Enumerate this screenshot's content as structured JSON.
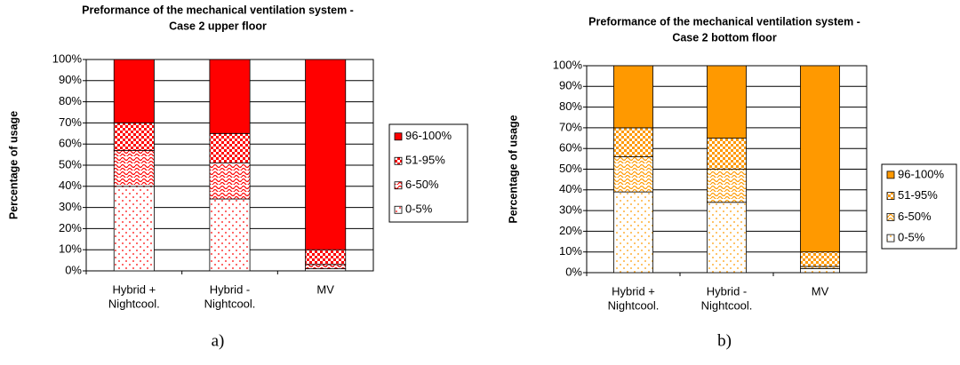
{
  "chart_data": [
    {
      "type": "bar",
      "stacked": true,
      "title": [
        "Preformance of the mechanical ventilation system  -",
        "Case 2 upper floor"
      ],
      "y_label": "Percentage of usage",
      "caption": "a)",
      "categories": [
        [
          "Hybrid +",
          "Nightcool."
        ],
        [
          "Hybrid -",
          "Nightcool."
        ],
        [
          "MV"
        ]
      ],
      "series": [
        {
          "name": "0-5%",
          "color": "#ff0000",
          "pattern": "dots",
          "values": [
            40,
            34,
            1
          ]
        },
        {
          "name": "6-50%",
          "color": "#ff0000",
          "pattern": "waves",
          "values": [
            17,
            17,
            2
          ]
        },
        {
          "name": "51-95%",
          "color": "#ff0000",
          "pattern": "checker",
          "values": [
            13,
            14,
            7
          ]
        },
        {
          "name": "96-100%",
          "color": "#ff0000",
          "pattern": "solid",
          "values": [
            30,
            35,
            90
          ]
        }
      ],
      "ylim": [
        0,
        100
      ],
      "yticks": [
        {
          "value": 0,
          "label": "0%"
        },
        {
          "value": 10,
          "label": "10%"
        },
        {
          "value": 20,
          "label": "20%"
        },
        {
          "value": 30,
          "label": "30%"
        },
        {
          "value": 40,
          "label": "40%"
        },
        {
          "value": 50,
          "label": "50%"
        },
        {
          "value": 60,
          "label": "60%"
        },
        {
          "value": 70,
          "label": "70%"
        },
        {
          "value": 80,
          "label": "80%"
        },
        {
          "value": 90,
          "label": "90%"
        },
        {
          "value": 100,
          "label": "100%"
        }
      ],
      "grid": true,
      "legend": "right"
    },
    {
      "type": "bar",
      "stacked": true,
      "title": [
        "Preformance of the mechanical ventilation system  -",
        "Case 2 bottom floor"
      ],
      "y_label": "Percentage of usage",
      "caption": "b)",
      "categories": [
        [
          "Hybrid +",
          "Nightcool."
        ],
        [
          "Hybrid -",
          "Nightcool."
        ],
        [
          "MV"
        ]
      ],
      "series": [
        {
          "name": "0-5%",
          "color": "#ff9900",
          "pattern": "dots",
          "values": [
            39,
            34,
            2
          ]
        },
        {
          "name": "6-50%",
          "color": "#ff9900",
          "pattern": "waves",
          "values": [
            17,
            16,
            1
          ]
        },
        {
          "name": "51-95%",
          "color": "#ff9900",
          "pattern": "checker",
          "values": [
            14,
            15,
            7
          ]
        },
        {
          "name": "96-100%",
          "color": "#ff9900",
          "pattern": "solid",
          "values": [
            30,
            35,
            90
          ]
        }
      ],
      "ylim": [
        0,
        100
      ],
      "yticks": [
        {
          "value": 0,
          "label": "0%"
        },
        {
          "value": 10,
          "label": "10%"
        },
        {
          "value": 20,
          "label": "20%"
        },
        {
          "value": 30,
          "label": "30%"
        },
        {
          "value": 40,
          "label": "40%"
        },
        {
          "value": 50,
          "label": "50%"
        },
        {
          "value": 60,
          "label": "60%"
        },
        {
          "value": 70,
          "label": "70%"
        },
        {
          "value": 80,
          "label": "80%"
        },
        {
          "value": 90,
          "label": "90%"
        },
        {
          "value": 100,
          "label": "100%"
        }
      ],
      "grid": true,
      "legend": "right"
    }
  ]
}
